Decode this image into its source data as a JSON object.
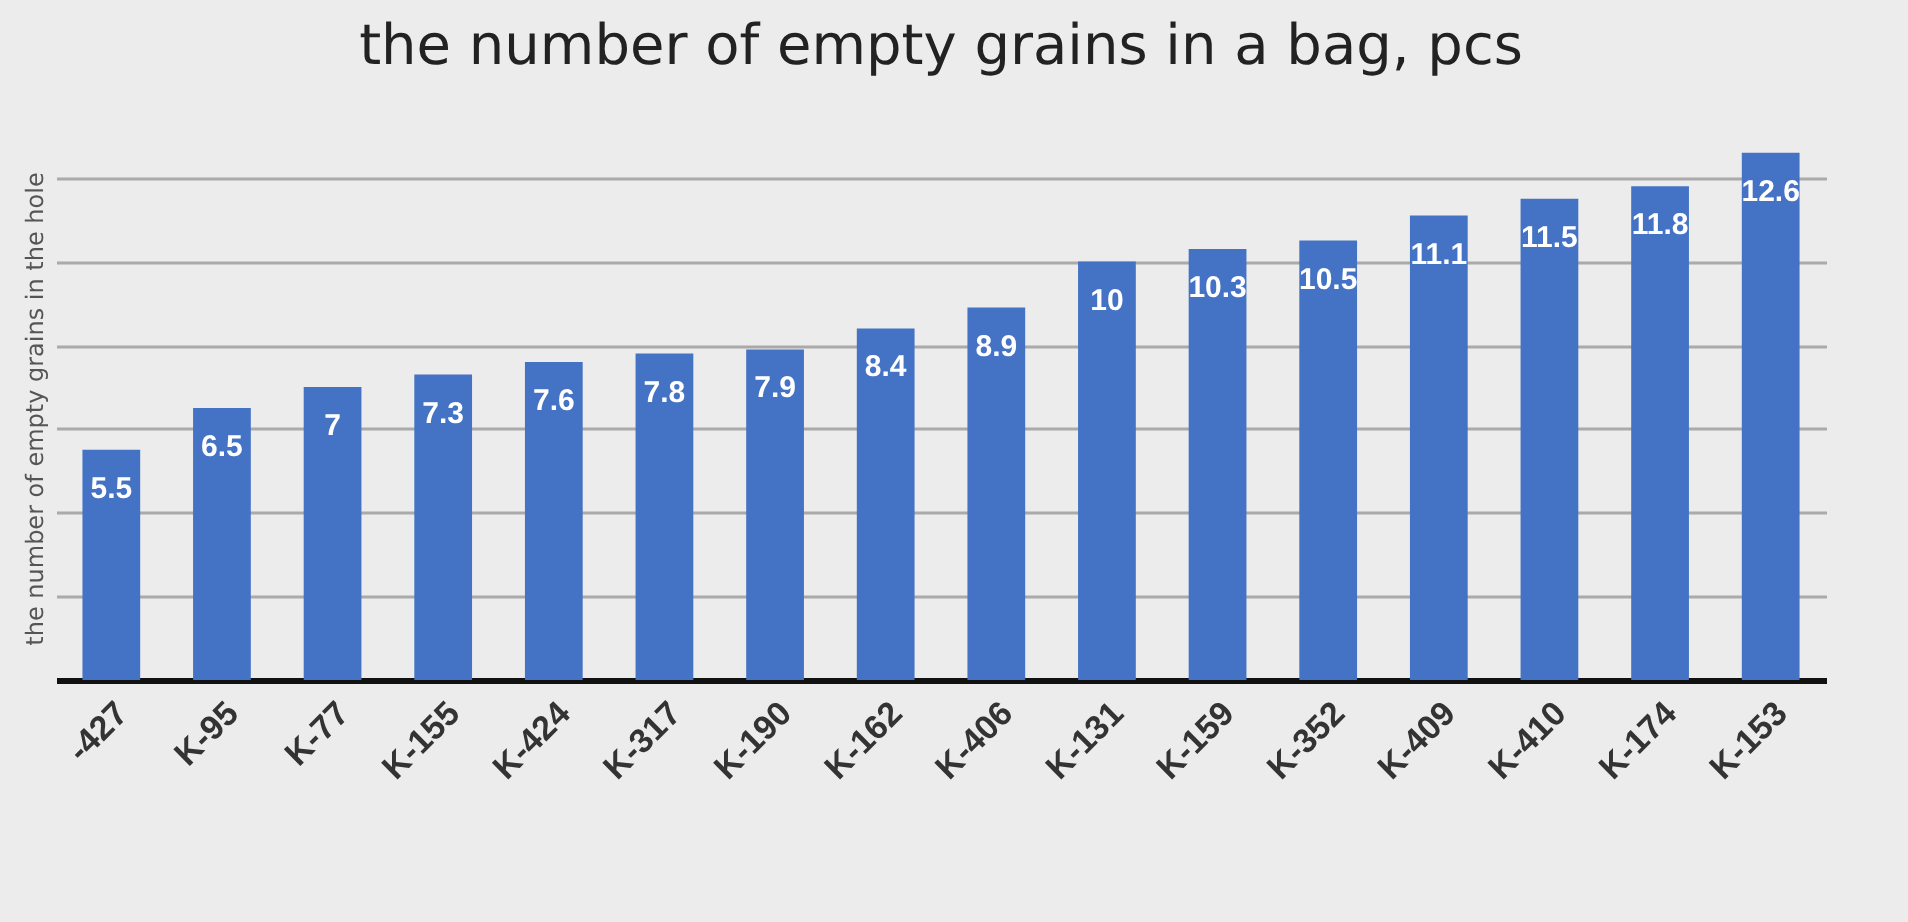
{
  "chart_data": {
    "type": "bar",
    "title": "the number of empty grains in a bag, pcs",
    "ylabel": "the number of empty grains in the hole",
    "categories": [
      "-427",
      "K-95",
      "K-77",
      "K-155",
      "K-424",
      "K-317",
      "K-190",
      "K-162",
      "K-406",
      "K-131",
      "K-159",
      "K-352",
      "K-409",
      "K-410",
      "K-174",
      "K-153"
    ],
    "values": [
      5.5,
      6.5,
      7,
      7.3,
      7.6,
      7.8,
      7.9,
      8.4,
      8.9,
      10,
      10.3,
      10.5,
      11.1,
      11.5,
      11.8,
      12.6
    ],
    "color": "#4472c4",
    "tick_labels": "x",
    "grid": "y",
    "data_labels": true
  }
}
